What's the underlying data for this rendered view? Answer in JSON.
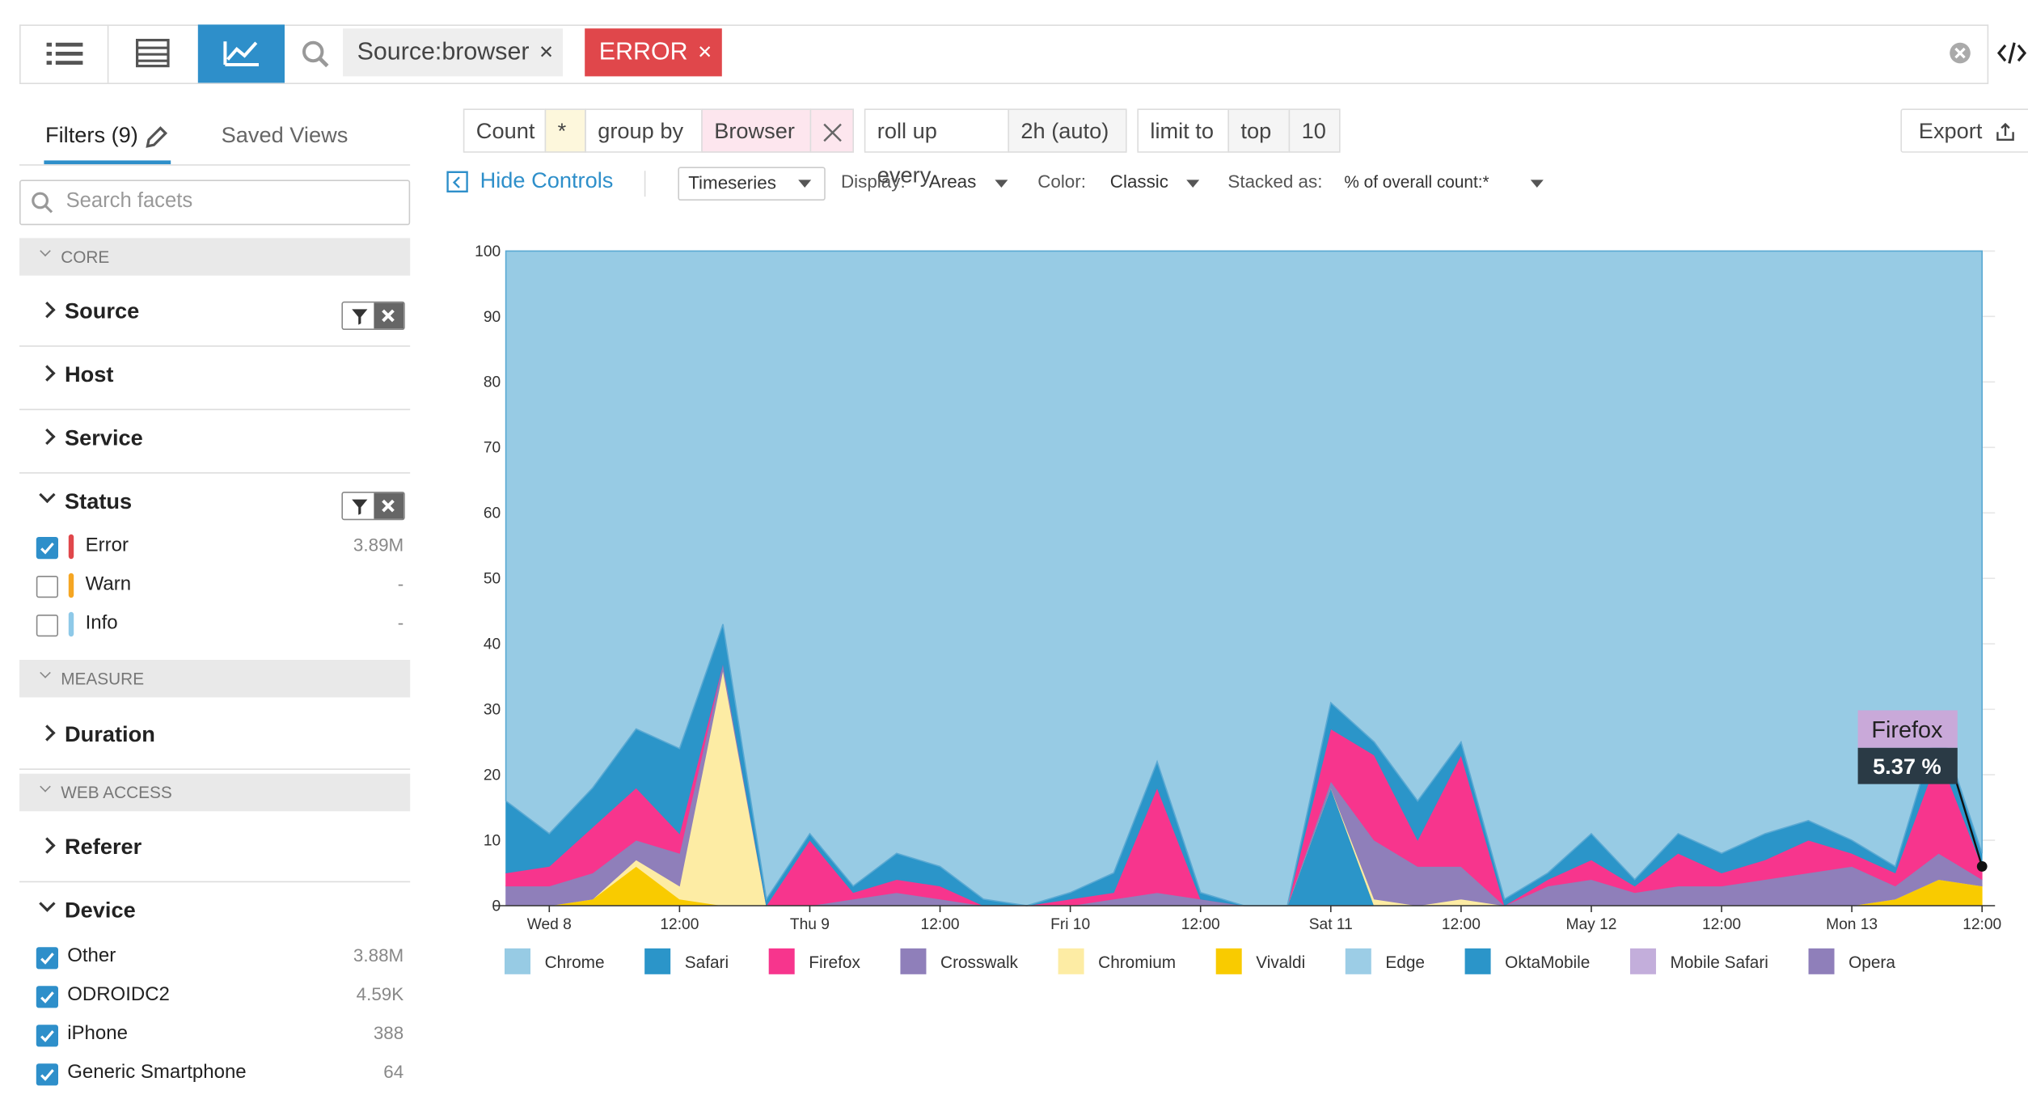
{
  "toolbar": {
    "chips": [
      "Source:browser",
      "ERROR"
    ]
  },
  "sidebar": {
    "tabs": [
      "Filters (9)",
      "Saved Views"
    ],
    "search_placeholder": "Search facets",
    "groups": [
      "CORE",
      "MEASURE",
      "WEB ACCESS"
    ],
    "facets": [
      "Source",
      "Host",
      "Service",
      "Status",
      "Duration",
      "Referer",
      "Device"
    ],
    "status_items": [
      {
        "label": "Error",
        "count": "3.89M",
        "checked": true,
        "color": "#e0474b"
      },
      {
        "label": "Warn",
        "count": "-",
        "checked": false,
        "color": "#f5a623"
      },
      {
        "label": "Info",
        "count": "-",
        "checked": false,
        "color": "#8ec9e8"
      }
    ],
    "device_items": [
      {
        "label": "Other",
        "count": "3.88M",
        "checked": true
      },
      {
        "label": "ODROIDC2",
        "count": "4.59K",
        "checked": true
      },
      {
        "label": "iPhone",
        "count": "388",
        "checked": true
      },
      {
        "label": "Generic Smartphone",
        "count": "64",
        "checked": true
      }
    ]
  },
  "query": {
    "measure": "Count",
    "field": "*",
    "group_by_label": "group by",
    "group_by": "Browser",
    "rollup_label": "roll up every",
    "rollup": "2h (auto)",
    "limit_label": "limit to",
    "limit_dir": "top",
    "limit": 10
  },
  "export": "Export",
  "controls": {
    "hide": "Hide Controls",
    "viz": "Timeseries",
    "display_label": "Display:",
    "display": "Areas",
    "color_label": "Color:",
    "color": "Classic",
    "stacked_label": "Stacked as:",
    "stacked": "% of overall count:*"
  },
  "chart_data": {
    "type": "area",
    "stacked": true,
    "grid": true,
    "x": [
      -4,
      0,
      4,
      8,
      12,
      16,
      20,
      24,
      28,
      32,
      36,
      40,
      44,
      48,
      52,
      56,
      60,
      64,
      68,
      72,
      76,
      80,
      84,
      88,
      92,
      96,
      100,
      104,
      108,
      112,
      116,
      120,
      124,
      128,
      132
    ],
    "xlim": [
      -4,
      132
    ],
    "xticks": [
      {
        "value": 0,
        "label": "Wed 8"
      },
      {
        "value": 12,
        "label": "12:00"
      },
      {
        "value": 24,
        "label": "Thu 9"
      },
      {
        "value": 36,
        "label": "12:00"
      },
      {
        "value": 48,
        "label": "Fri 10"
      },
      {
        "value": 60,
        "label": "12:00"
      },
      {
        "value": 72,
        "label": "Sat 11"
      },
      {
        "value": 84,
        "label": "12:00"
      },
      {
        "value": 96,
        "label": "May 12"
      },
      {
        "value": 108,
        "label": "12:00"
      },
      {
        "value": 120,
        "label": "Mon 13"
      },
      {
        "value": 132,
        "label": "12:00"
      }
    ],
    "ylim": [
      0,
      100
    ],
    "yticks": [
      0,
      10,
      20,
      30,
      40,
      50,
      60,
      70,
      80,
      90,
      100
    ],
    "series": [
      {
        "name": "Chrome",
        "color": "#97cbe4",
        "values": [
          84,
          89,
          82,
          73,
          76,
          57,
          99,
          89,
          97,
          92,
          94,
          99,
          100,
          98,
          95,
          78,
          98,
          100,
          100,
          69,
          75,
          84,
          75,
          99,
          95,
          89,
          96,
          89,
          92,
          89,
          87,
          90,
          94,
          72,
          92
        ]
      },
      {
        "name": "Safari",
        "color": "#2b95c9",
        "values": [
          11,
          5,
          6,
          9,
          13,
          6,
          1,
          1,
          1,
          4,
          3,
          1,
          0,
          1,
          3,
          4,
          1,
          0,
          0,
          4,
          2,
          6,
          2,
          1,
          1,
          4,
          1,
          3,
          3,
          4,
          3,
          2,
          1,
          5,
          2
        ]
      },
      {
        "name": "Firefox",
        "color": "#f7358d",
        "values": [
          2,
          3,
          7,
          8,
          3,
          0,
          0,
          10,
          1,
          2,
          2,
          0,
          0,
          1,
          1,
          16,
          0,
          0,
          0,
          8,
          13,
          4,
          17,
          0,
          1,
          3,
          1,
          5,
          2,
          3,
          5,
          2,
          2,
          15,
          2
        ]
      },
      {
        "name": "Crosswalk",
        "color": "#8f7fba",
        "values": [
          3,
          3,
          4,
          3,
          5,
          1,
          0,
          0,
          1,
          2,
          1,
          0,
          0,
          0,
          1,
          2,
          1,
          0,
          0,
          1,
          9,
          6,
          5,
          0,
          3,
          4,
          2,
          3,
          3,
          4,
          5,
          6,
          2,
          4,
          1
        ]
      },
      {
        "name": "Chromium",
        "color": "#fdeca4",
        "values": [
          0,
          0,
          0,
          1,
          2,
          36,
          0,
          0,
          0,
          0,
          0,
          0,
          0,
          0,
          0,
          0,
          0,
          0,
          0,
          0,
          1,
          0,
          1,
          0,
          0,
          0,
          0,
          0,
          0,
          0,
          0,
          0,
          0,
          0,
          0
        ]
      },
      {
        "name": "Vivaldi",
        "color": "#f9cb00",
        "values": [
          0,
          0,
          1,
          6,
          1,
          0,
          0,
          0,
          0,
          0,
          0,
          0,
          0,
          0,
          0,
          0,
          0,
          0,
          0,
          0,
          0,
          0,
          0,
          0,
          0,
          0,
          0,
          0,
          0,
          0,
          0,
          0,
          1,
          4,
          3
        ]
      },
      {
        "name": "Edge",
        "color": "#9ccde6",
        "values": [
          0,
          0,
          0,
          0,
          0,
          0,
          0,
          0,
          0,
          0,
          0,
          0,
          0,
          0,
          0,
          0,
          0,
          0,
          0,
          0,
          0,
          0,
          0,
          0,
          0,
          0,
          0,
          0,
          0,
          0,
          0,
          0,
          0,
          0,
          0
        ]
      },
      {
        "name": "OktaMobile",
        "color": "#2b95c9",
        "values": [
          0,
          0,
          0,
          0,
          0,
          0,
          0,
          0,
          0,
          0,
          0,
          0,
          0,
          0,
          0,
          0,
          0,
          0,
          0,
          18,
          0,
          0,
          0,
          0,
          0,
          0,
          0,
          0,
          0,
          0,
          0,
          0,
          0,
          0,
          0
        ]
      },
      {
        "name": "Mobile Safari",
        "color": "#c3aedb",
        "values": [
          0,
          0,
          0,
          0,
          0,
          0,
          0,
          0,
          0,
          0,
          0,
          0,
          0,
          0,
          0,
          0,
          0,
          0,
          0,
          0,
          0,
          0,
          0,
          0,
          0,
          0,
          0,
          0,
          0,
          0,
          0,
          0,
          0,
          0,
          0
        ]
      },
      {
        "name": "Opera",
        "color": "#8f7fba",
        "values": [
          0,
          0,
          0,
          0,
          0,
          0,
          0,
          0,
          0,
          0,
          0,
          0,
          0,
          0,
          0,
          0,
          0,
          0,
          0,
          0,
          0,
          0,
          0,
          0,
          0,
          0,
          0,
          0,
          0,
          0,
          0,
          0,
          0,
          0,
          0
        ]
      }
    ],
    "tooltip": {
      "title": "Firefox",
      "value_label": "5.37 %"
    }
  }
}
